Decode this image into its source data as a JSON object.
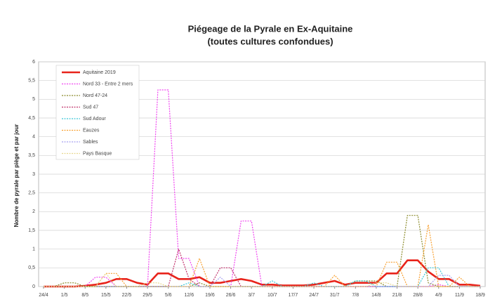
{
  "chart_data": {
    "type": "line",
    "title": "Piégeage de la Pyrale en Ex-Aquitaine",
    "subtitle": "(toutes cultures confondues)",
    "y_label": "Nombre de pyrale par piège et par jour",
    "categories": [
      "24/4",
      null,
      "1/5",
      null,
      "8/5",
      null,
      "15/5",
      null,
      "22/5",
      null,
      "29/5",
      null,
      "5/6",
      null,
      "12/6",
      null,
      "19/6",
      null,
      "26/6",
      null,
      "3/7",
      null,
      "10/7",
      null,
      "17/7",
      null,
      "24/7",
      null,
      "31/7",
      null,
      "7/8",
      null,
      "14/8",
      null,
      "21/8",
      null,
      "28/8",
      null,
      "4/9",
      null,
      "11/9",
      null,
      "18/9"
    ],
    "ylim": [
      0,
      6
    ],
    "yticks": [
      0,
      {
        "value": 0.5,
        "label": "0,5"
      },
      1,
      {
        "value": 1.5,
        "label": "1,5"
      },
      2,
      {
        "value": 2.5,
        "label": "2,5"
      },
      3,
      {
        "value": 3.5,
        "label": "3,5"
      },
      4,
      {
        "value": 4.5,
        "label": "4,5"
      },
      5,
      {
        "value": 5.5,
        "label": "5,5"
      },
      6
    ],
    "grid": true,
    "legend": "upper left",
    "series": [
      {
        "name": "Aquitaine 2019",
        "color": "#e8231a",
        "values": [
          0,
          0,
          0,
          0,
          0.02,
          0.05,
          0.1,
          0.2,
          0.2,
          0.1,
          0.05,
          0.35,
          0.35,
          0.2,
          0.2,
          0.25,
          0.1,
          0.1,
          0.15,
          0.2,
          0.15,
          0.05,
          0.05,
          0.03,
          0.03,
          0.03,
          0.05,
          0.1,
          0.15,
          0.05,
          0.1,
          0.1,
          0.1,
          0.35,
          0.35,
          0.7,
          0.7,
          0.4,
          0.2,
          0.2,
          0.05,
          0.05,
          0.02
        ]
      },
      {
        "name": "Nord 33 - Entre 2 mers",
        "color": "#f046f0",
        "values": [
          0,
          0,
          0,
          0,
          0,
          0.25,
          0.25,
          0,
          0,
          0,
          0,
          5.25,
          5.25,
          0.75,
          0.75,
          0,
          0,
          0,
          0,
          1.75,
          1.75,
          0,
          0,
          0,
          0,
          0,
          0,
          0,
          0,
          0,
          0,
          0,
          0,
          0,
          0,
          0,
          0,
          0,
          0.05,
          0,
          0,
          0,
          0
        ]
      },
      {
        "name": "Nord 47-24",
        "color": "#8a8a2a",
        "values": [
          0,
          0,
          0.1,
          0.1,
          0,
          0,
          0,
          0,
          0,
          0,
          0,
          0,
          0,
          0,
          0,
          0.1,
          0,
          0,
          0,
          0,
          0,
          0,
          0,
          0,
          0,
          0,
          0,
          0,
          0,
          0,
          0.15,
          0.15,
          0.15,
          0,
          0,
          1.9,
          1.9,
          0.1,
          0,
          0,
          0,
          0,
          0
        ]
      },
      {
        "name": "Sud 47",
        "color": "#c0306a",
        "values": [
          0,
          0,
          0,
          0,
          0,
          0,
          0,
          0,
          0,
          0,
          0,
          0,
          0,
          1,
          0.2,
          0,
          0,
          0.5,
          0.5,
          0,
          0,
          0,
          0,
          0,
          0,
          0,
          0,
          0,
          0,
          0,
          0,
          0,
          0,
          0,
          0,
          0,
          0,
          0,
          0,
          0,
          0,
          0,
          0
        ]
      },
      {
        "name": "Sud Adour",
        "color": "#3cc8d8",
        "values": [
          0,
          0,
          0,
          0,
          0,
          0,
          0,
          0,
          0,
          0,
          0,
          0,
          0,
          0,
          0.1,
          0,
          0,
          0,
          0,
          0,
          0,
          0,
          0.15,
          0,
          0,
          0,
          0.1,
          0,
          0,
          0,
          0.15,
          0.15,
          0,
          0,
          0,
          0,
          0,
          0.5,
          0.5,
          0,
          0,
          0,
          0
        ]
      },
      {
        "name": "Eauzes",
        "color": "#f8a030",
        "values": [
          0,
          0,
          0,
          0,
          0,
          0,
          0.35,
          0.35,
          0,
          0,
          0,
          0,
          0,
          0,
          0,
          0.75,
          0,
          0,
          0,
          0,
          0,
          0,
          0,
          0,
          0,
          0,
          0,
          0,
          0.3,
          0,
          0,
          0,
          0,
          0.65,
          0.65,
          0,
          0,
          1.65,
          0,
          0,
          0.25,
          0,
          0
        ]
      },
      {
        "name": "Sables",
        "color": "#a8a0f0",
        "values": [
          0,
          0,
          0,
          0,
          0,
          0,
          0,
          0,
          0,
          0,
          0,
          0,
          0,
          0,
          0,
          0,
          0,
          0.25,
          0,
          0,
          0,
          0,
          0,
          0,
          0,
          0,
          0,
          0,
          0,
          0,
          0,
          0,
          0,
          0,
          0,
          0,
          0,
          0,
          0.3,
          0.3,
          0,
          0,
          0
        ]
      },
      {
        "name": "Pays Basque",
        "color": "#e8d890",
        "values": [
          0,
          0,
          0,
          0,
          0,
          0,
          0.35,
          0,
          0,
          0,
          0.1,
          0.1,
          0,
          0,
          0,
          0,
          0,
          0,
          0,
          0,
          0,
          0,
          0,
          0,
          0,
          0,
          0,
          0,
          0,
          0,
          0,
          0,
          0.1,
          0.1,
          0,
          0,
          0,
          0,
          0,
          0,
          0,
          0,
          0
        ]
      }
    ]
  }
}
